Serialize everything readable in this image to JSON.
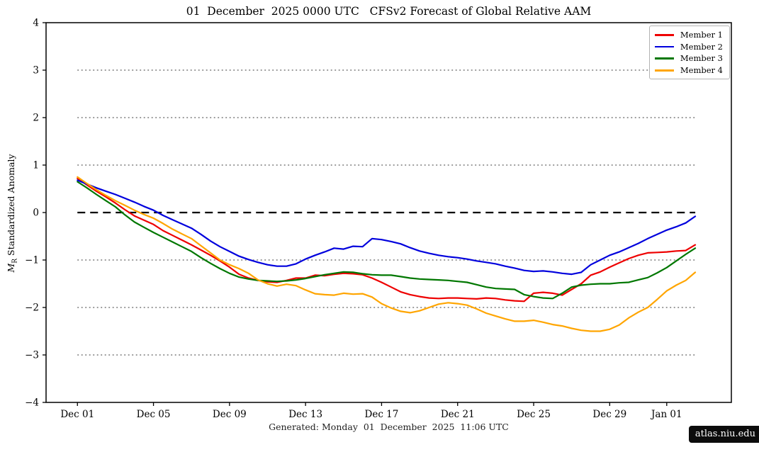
{
  "title": "01  December  2025 0000 UTC   CFSv2 Forecast of Global Relative AAM",
  "footer": "Generated: Monday  01  December  2025  11:06 UTC",
  "badge": "atlas.niu.edu",
  "ylabel": {
    "var": "M",
    "sub": "R",
    "rest": " Standardized Anomaly"
  },
  "chart_data": {
    "type": "line",
    "title": "01  December  2025 0000 UTC   CFSv2 Forecast of Global Relative AAM",
    "xlabel": "",
    "ylabel": "M_R Standardized Anomaly",
    "ylim": [
      -4,
      4
    ],
    "xlim_days": [
      -1.65,
      34.4
    ],
    "grid": "horizontal dotted at ±1,±2,±3; dashed black at 0",
    "legend_position": "top-right",
    "x_unit": "days since 01 Dec 2025 0000 UTC",
    "x_start": 0,
    "x_step": 0.5,
    "ref_span_days": [
      0,
      32.5
    ],
    "dotted_gridlines_at": [
      3,
      2,
      1,
      -1,
      -2,
      -3
    ],
    "dashed_zero_at": 0,
    "xticks": [
      {
        "day": 0,
        "label": "Dec 01"
      },
      {
        "day": 4,
        "label": "Dec 05"
      },
      {
        "day": 8,
        "label": "Dec 09"
      },
      {
        "day": 12,
        "label": "Dec 13"
      },
      {
        "day": 16,
        "label": "Dec 17"
      },
      {
        "day": 20,
        "label": "Dec 21"
      },
      {
        "day": 24,
        "label": "Dec 25"
      },
      {
        "day": 28,
        "label": "Dec 29"
      },
      {
        "day": 31,
        "label": "Jan 01"
      }
    ],
    "yticks": [
      {
        "v": 4,
        "label": "4"
      },
      {
        "v": 3,
        "label": "3"
      },
      {
        "v": 2,
        "label": "2"
      },
      {
        "v": 1,
        "label": "1"
      },
      {
        "v": 0,
        "label": "0"
      },
      {
        "v": -1,
        "label": "−1"
      },
      {
        "v": -2,
        "label": "−2"
      },
      {
        "v": -3,
        "label": "−3"
      },
      {
        "v": -4,
        "label": "−4"
      }
    ],
    "series": [
      {
        "name": "Member 1",
        "color": "#ee0000",
        "values": [
          0.72,
          0.58,
          0.45,
          0.33,
          0.2,
          0.06,
          -0.07,
          -0.16,
          -0.25,
          -0.38,
          -0.48,
          -0.58,
          -0.68,
          -0.79,
          -0.9,
          -1.02,
          -1.15,
          -1.3,
          -1.38,
          -1.43,
          -1.46,
          -1.47,
          -1.43,
          -1.38,
          -1.38,
          -1.32,
          -1.33,
          -1.3,
          -1.28,
          -1.29,
          -1.31,
          -1.38,
          -1.47,
          -1.57,
          -1.67,
          -1.73,
          -1.77,
          -1.8,
          -1.81,
          -1.8,
          -1.8,
          -1.81,
          -1.82,
          -1.8,
          -1.81,
          -1.84,
          -1.86,
          -1.87,
          -1.7,
          -1.68,
          -1.7,
          -1.74,
          -1.62,
          -1.5,
          -1.32,
          -1.25,
          -1.15,
          -1.06,
          -0.97,
          -0.9,
          -0.85,
          -0.84,
          -0.83,
          -0.81,
          -0.8,
          -0.68
        ]
      },
      {
        "name": "Member 2",
        "color": "#0000dd",
        "values": [
          0.68,
          0.6,
          0.52,
          0.45,
          0.38,
          0.3,
          0.22,
          0.13,
          0.05,
          -0.06,
          -0.15,
          -0.24,
          -0.33,
          -0.46,
          -0.6,
          -0.72,
          -0.82,
          -0.92,
          -0.99,
          -1.05,
          -1.1,
          -1.13,
          -1.13,
          -1.08,
          -0.98,
          -0.9,
          -0.83,
          -0.75,
          -0.77,
          -0.71,
          -0.72,
          -0.55,
          -0.57,
          -0.61,
          -0.66,
          -0.74,
          -0.81,
          -0.86,
          -0.9,
          -0.93,
          -0.95,
          -0.98,
          -1.02,
          -1.05,
          -1.08,
          -1.13,
          -1.17,
          -1.22,
          -1.24,
          -1.23,
          -1.25,
          -1.28,
          -1.3,
          -1.26,
          -1.1,
          -1.0,
          -0.9,
          -0.83,
          -0.74,
          -0.65,
          -0.55,
          -0.46,
          -0.37,
          -0.3,
          -0.22,
          -0.08
        ]
      },
      {
        "name": "Member 3",
        "color": "#007700",
        "values": [
          0.65,
          0.52,
          0.38,
          0.25,
          0.12,
          -0.05,
          -0.2,
          -0.31,
          -0.42,
          -0.52,
          -0.62,
          -0.72,
          -0.82,
          -0.95,
          -1.07,
          -1.18,
          -1.28,
          -1.36,
          -1.4,
          -1.43,
          -1.44,
          -1.45,
          -1.44,
          -1.42,
          -1.39,
          -1.35,
          -1.31,
          -1.28,
          -1.25,
          -1.26,
          -1.29,
          -1.31,
          -1.32,
          -1.32,
          -1.35,
          -1.38,
          -1.4,
          -1.41,
          -1.42,
          -1.43,
          -1.45,
          -1.47,
          -1.52,
          -1.57,
          -1.6,
          -1.61,
          -1.62,
          -1.73,
          -1.77,
          -1.8,
          -1.81,
          -1.7,
          -1.57,
          -1.53,
          -1.51,
          -1.5,
          -1.5,
          -1.48,
          -1.47,
          -1.42,
          -1.37,
          -1.27,
          -1.16,
          -1.02,
          -0.88,
          -0.75
        ]
      },
      {
        "name": "Member 4",
        "color": "#ffa500",
        "values": [
          0.75,
          0.61,
          0.48,
          0.36,
          0.25,
          0.15,
          0.05,
          -0.04,
          -0.12,
          -0.23,
          -0.35,
          -0.45,
          -0.55,
          -0.7,
          -0.85,
          -1.0,
          -1.1,
          -1.18,
          -1.28,
          -1.42,
          -1.5,
          -1.55,
          -1.51,
          -1.54,
          -1.63,
          -1.71,
          -1.73,
          -1.74,
          -1.7,
          -1.72,
          -1.71,
          -1.78,
          -1.92,
          -2.01,
          -2.08,
          -2.11,
          -2.07,
          -2.0,
          -1.93,
          -1.9,
          -1.92,
          -1.95,
          -2.03,
          -2.12,
          -2.18,
          -2.24,
          -2.29,
          -2.29,
          -2.27,
          -2.31,
          -2.36,
          -2.39,
          -2.44,
          -2.48,
          -2.5,
          -2.5,
          -2.46,
          -2.37,
          -2.22,
          -2.1,
          -2.0,
          -1.83,
          -1.65,
          -1.53,
          -1.43,
          -1.26
        ]
      }
    ],
    "colors": {
      "frame": "#000000",
      "dotted_grid": "#999999",
      "zero_line": "#000000",
      "legend_border": "#b3b3b3",
      "badge_bg": "#0c0c0c",
      "badge_text": "#ffffff"
    }
  }
}
